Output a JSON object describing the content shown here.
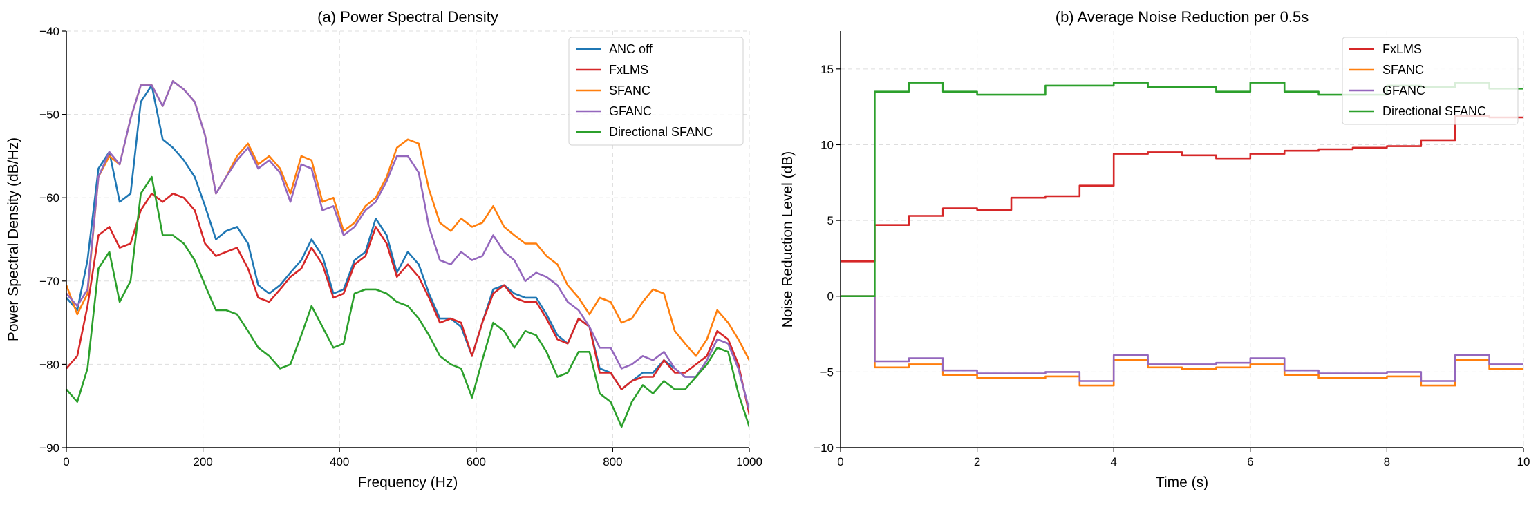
{
  "chart_data": [
    {
      "type": "line",
      "title": "(a) Power Spectral Density",
      "xlabel": "Frequency (Hz)",
      "ylabel": "Power Spectral Density (dB/Hz)",
      "xlim": [
        0,
        1000
      ],
      "ylim": [
        -90,
        -40
      ],
      "xticks": [
        0,
        200,
        400,
        600,
        800,
        1000
      ],
      "yticks": [
        -90,
        -80,
        -70,
        -60,
        -50,
        -40
      ],
      "xtick_labels": [
        "0",
        "200",
        "400",
        "600",
        "800",
        "1000"
      ],
      "ytick_labels": [
        "−90",
        "−80",
        "−70",
        "−60",
        "−50",
        "−40"
      ],
      "grid": true,
      "legend_position": "top-right",
      "x": [
        0,
        16,
        31,
        47,
        63,
        78,
        94,
        109,
        125,
        141,
        156,
        172,
        188,
        203,
        219,
        234,
        250,
        266,
        281,
        297,
        313,
        328,
        344,
        359,
        375,
        391,
        406,
        422,
        438,
        453,
        469,
        484,
        500,
        516,
        531,
        547,
        563,
        578,
        594,
        609,
        625,
        641,
        656,
        672,
        688,
        703,
        719,
        734,
        750,
        766,
        781,
        797,
        813,
        828,
        844,
        859,
        875,
        891,
        906,
        922,
        938,
        953,
        969,
        984,
        1000
      ],
      "series": [
        {
          "name": "ANC off",
          "color": "#1f77b4",
          "values": [
            -72,
            -73.5,
            -67.5,
            -56.5,
            -54.5,
            -60.5,
            -59.5,
            -48.5,
            -46.5,
            -53,
            -54,
            -55.5,
            -57.5,
            -61,
            -65,
            -64,
            -63.5,
            -65.5,
            -70.5,
            -71.5,
            -70.5,
            -69,
            -67.5,
            -65,
            -67,
            -71.5,
            -71,
            -67.5,
            -66.5,
            -62.5,
            -64.5,
            -69,
            -66.5,
            -68,
            -71.5,
            -74.5,
            -74.5,
            -75.5,
            -79,
            -75,
            -71,
            -70.5,
            -71.5,
            -72,
            -72,
            -74,
            -76.5,
            -77.5,
            -74.5,
            -75.5,
            -80.5,
            -81,
            -83,
            -82,
            -81,
            -81,
            -79.5,
            -80.5,
            -81.5,
            -81.5,
            -79.5,
            -77,
            -77.5,
            -80.5,
            -85.5
          ]
        },
        {
          "name": "FxLMS",
          "color": "#d62728",
          "values": [
            -80.5,
            -79,
            -73,
            -64.5,
            -63.5,
            -66,
            -65.5,
            -61.5,
            -59.5,
            -60.5,
            -59.5,
            -60,
            -61.5,
            -65.5,
            -67,
            -66.5,
            -66,
            -68.5,
            -72,
            -72.5,
            -71,
            -69.5,
            -68.5,
            -66,
            -68,
            -72,
            -71.5,
            -68,
            -67,
            -63.5,
            -65.5,
            -69.5,
            -68,
            -69.5,
            -72,
            -75,
            -74.5,
            -75,
            -79,
            -75,
            -71.5,
            -70.5,
            -72,
            -72.5,
            -72.5,
            -74.5,
            -77,
            -77.5,
            -74.5,
            -75.5,
            -81,
            -81,
            -83,
            -82,
            -81.5,
            -81.5,
            -79.5,
            -81,
            -81,
            -80,
            -79,
            -76,
            -77,
            -80,
            -86
          ]
        },
        {
          "name": "SFANC",
          "color": "#ff7f0e",
          "values": [
            -70.5,
            -74,
            -71.5,
            -57.5,
            -55,
            -56,
            -50.5,
            -46.5,
            -46.5,
            -49,
            -46,
            -47,
            -48.5,
            -52.5,
            -59.5,
            -57.5,
            -55,
            -53.5,
            -56,
            -55,
            -56.5,
            -59.5,
            -55,
            -55.5,
            -60.5,
            -60,
            -64,
            -63,
            -61,
            -60,
            -57.5,
            -54,
            -53,
            -53.5,
            -59,
            -63,
            -64,
            -62.5,
            -63.5,
            -63,
            -61,
            -63.5,
            -64.5,
            -65.5,
            -65.5,
            -67,
            -68,
            -70.5,
            -72,
            -74,
            -72,
            -72.5,
            -75,
            -74.5,
            -72.5,
            -71,
            -71.5,
            -76,
            -77.5,
            -79,
            -77,
            -73.5,
            -75,
            -77,
            -79.5
          ]
        },
        {
          "name": "GFANC",
          "color": "#9467bd",
          "values": [
            -71.5,
            -73,
            -71,
            -57.5,
            -54.5,
            -56,
            -50.5,
            -46.5,
            -46.5,
            -49,
            -46,
            -47,
            -48.5,
            -52.5,
            -59.5,
            -57.5,
            -55.5,
            -54,
            -56.5,
            -55.5,
            -57,
            -60.5,
            -56,
            -56.5,
            -61.5,
            -61,
            -64.5,
            -63.5,
            -61.5,
            -60.5,
            -58,
            -55,
            -55,
            -57,
            -63.5,
            -67.5,
            -68,
            -66.5,
            -67.5,
            -67,
            -64.5,
            -66.5,
            -67.5,
            -70,
            -69,
            -69.5,
            -70.5,
            -72.5,
            -73.5,
            -75.5,
            -78,
            -78,
            -80.5,
            -80,
            -79,
            -79.5,
            -78.5,
            -80.5,
            -81.5,
            -81.5,
            -79.5,
            -77,
            -77.5,
            -80.5,
            -85.5
          ]
        },
        {
          "name": "Directional SFANC",
          "color": "#2ca02c",
          "values": [
            -83,
            -84.5,
            -80.5,
            -68.5,
            -66.5,
            -72.5,
            -70,
            -59.5,
            -57.5,
            -64.5,
            -64.5,
            -65.5,
            -67.5,
            -70.5,
            -73.5,
            -73.5,
            -74,
            -76,
            -78,
            -79,
            -80.5,
            -80,
            -76.5,
            -73,
            -75.5,
            -78,
            -77.5,
            -71.5,
            -71,
            -71,
            -71.5,
            -72.5,
            -73,
            -74.5,
            -76.5,
            -79,
            -80,
            -80.5,
            -84,
            -79.5,
            -75,
            -76,
            -78,
            -76,
            -76.5,
            -78.5,
            -81.5,
            -81,
            -78.5,
            -78.5,
            -83.5,
            -84.5,
            -87.5,
            -84.5,
            -82.5,
            -83.5,
            -82,
            -83,
            -83,
            -81.5,
            -80,
            -78,
            -78.5,
            -83.5,
            -87.5
          ]
        }
      ]
    },
    {
      "type": "line",
      "title": "(b) Average Noise Reduction per 0.5s",
      "xlabel": "Time (s)",
      "ylabel": "Noise Reduction Level (dB)",
      "xlim": [
        0,
        10
      ],
      "ylim": [
        -10,
        17.5
      ],
      "xticks": [
        0,
        2,
        4,
        6,
        8,
        10
      ],
      "yticks": [
        -10,
        -5,
        0,
        5,
        10,
        15
      ],
      "xtick_labels": [
        "0",
        "2",
        "4",
        "6",
        "8",
        "10"
      ],
      "ytick_labels": [
        "−10",
        "−5",
        "0",
        "5",
        "10",
        "15"
      ],
      "grid": true,
      "step": "post",
      "legend_position": "top-right",
      "x": [
        0,
        0.5,
        1,
        1.5,
        2,
        2.5,
        3,
        3.5,
        4,
        4.5,
        5,
        5.5,
        6,
        6.5,
        7,
        7.5,
        8,
        8.5,
        9,
        9.5
      ],
      "series": [
        {
          "name": "FxLMS",
          "color": "#d62728",
          "values": [
            2.3,
            4.7,
            5.3,
            5.8,
            5.7,
            6.5,
            6.6,
            7.3,
            9.4,
            9.5,
            9.3,
            9.1,
            9.4,
            9.6,
            9.7,
            9.8,
            9.9,
            10.3,
            11.9,
            11.8
          ]
        },
        {
          "name": "SFANC",
          "color": "#ff7f0e",
          "values": [
            0,
            -4.7,
            -4.5,
            -5.2,
            -5.4,
            -5.4,
            -5.3,
            -5.9,
            -4.2,
            -4.7,
            -4.8,
            -4.7,
            -4.5,
            -5.2,
            -5.4,
            -5.4,
            -5.3,
            -5.9,
            -4.2,
            -4.8
          ]
        },
        {
          "name": "GFANC",
          "color": "#9467bd",
          "values": [
            0,
            -4.3,
            -4.1,
            -4.9,
            -5.1,
            -5.1,
            -5.0,
            -5.6,
            -3.9,
            -4.5,
            -4.5,
            -4.4,
            -4.1,
            -4.9,
            -5.1,
            -5.1,
            -5.0,
            -5.6,
            -3.9,
            -4.5
          ]
        },
        {
          "name": "Directional SFANC",
          "color": "#2ca02c",
          "values": [
            0,
            13.5,
            14.1,
            13.5,
            13.3,
            13.3,
            13.9,
            13.9,
            14.1,
            13.8,
            13.8,
            13.5,
            14.1,
            13.5,
            13.3,
            13.3,
            13.9,
            13.8,
            14.1,
            13.7
          ]
        }
      ]
    }
  ]
}
